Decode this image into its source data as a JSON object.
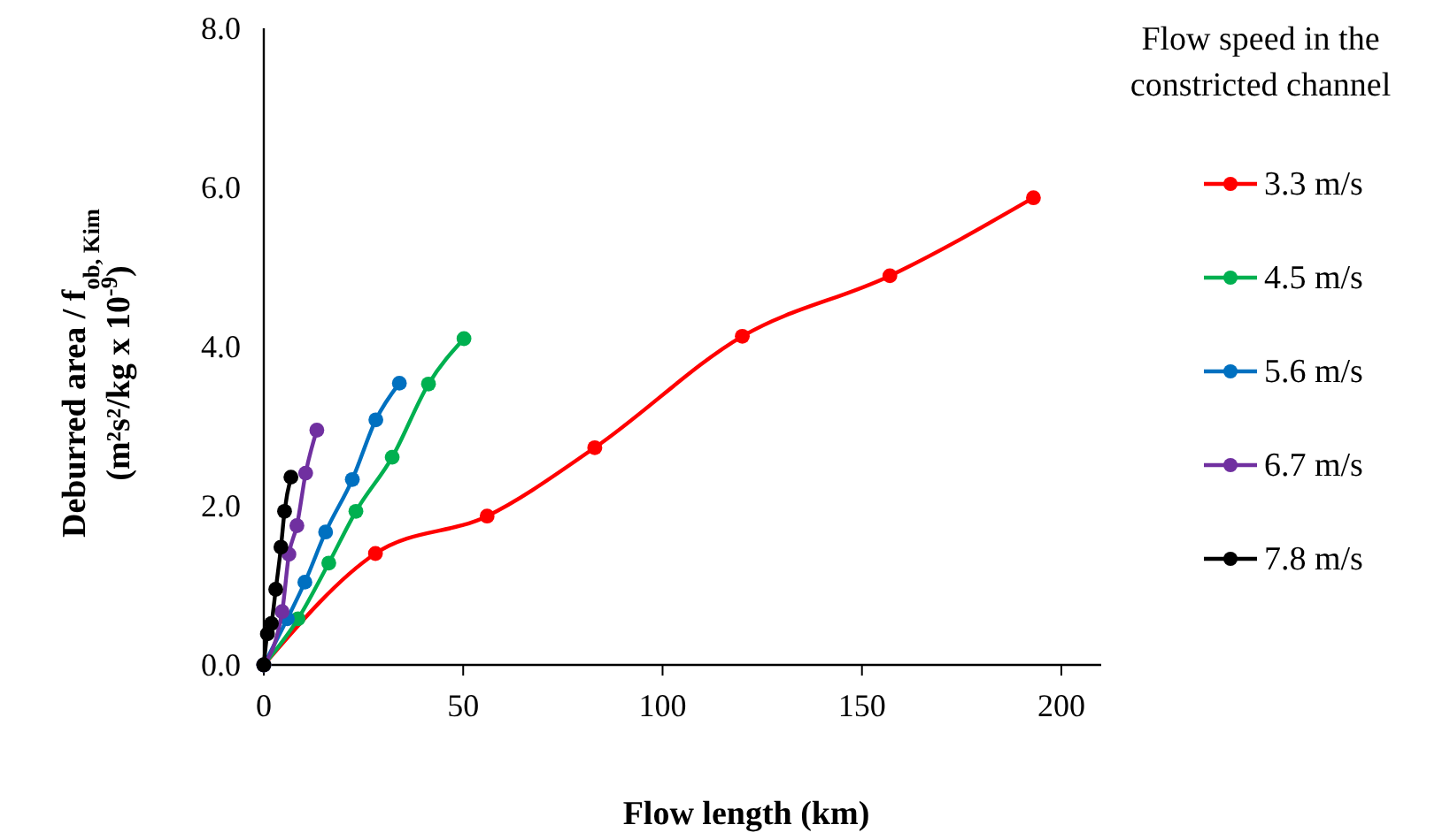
{
  "chart_data": {
    "type": "line",
    "xlabel": "Flow length (km)",
    "ylabel": "Deburred area / f$_{ob, Kim}$\n(m²s²/kg x 10$^{-9}$)",
    "legend_title": "Flow speed in the constricted channel",
    "legend": "right",
    "marker": "circle",
    "line_style": "solid",
    "grid": false,
    "xlim": [
      0,
      210
    ],
    "xticks": [
      0,
      50,
      100,
      150,
      200
    ],
    "ylim": [
      0,
      8
    ],
    "yticks": [
      {
        "value": 0,
        "label": "0.0"
      },
      {
        "value": 2,
        "label": "2.0"
      },
      {
        "value": 4,
        "label": "4.0"
      },
      {
        "value": 6,
        "label": "6.0"
      },
      {
        "value": 8,
        "label": "8.0"
      }
    ],
    "series": [
      {
        "name": "3.3 m/s",
        "color": "#ff0000",
        "x": [
          0,
          28,
          56,
          83,
          120,
          157,
          193
        ],
        "values": [
          0,
          1.4,
          1.87,
          2.73,
          4.13,
          4.89,
          5.87
        ]
      },
      {
        "name": "4.5 m/s",
        "color": "#00b050",
        "x": [
          0,
          8.6,
          16.3,
          23.1,
          32.2,
          41.3,
          50.2
        ],
        "values": [
          0,
          0.58,
          1.28,
          1.93,
          2.61,
          3.53,
          4.1
        ]
      },
      {
        "name": "5.6 m/s",
        "color": "#0070c0",
        "x": [
          0,
          5.9,
          10.3,
          15.5,
          22.2,
          28.1,
          34
        ],
        "values": [
          0,
          0.58,
          1.04,
          1.67,
          2.33,
          3.08,
          3.54
        ]
      },
      {
        "name": "6.7 m/s",
        "color": "#7030a0",
        "x": [
          0,
          4.6,
          6.3,
          8.3,
          10.5,
          13.3
        ],
        "values": [
          0,
          0.67,
          1.39,
          1.75,
          2.41,
          2.95
        ]
      },
      {
        "name": "7.8 m/s",
        "color": "#000000",
        "x": [
          0,
          0.9,
          1.9,
          3,
          4.3,
          5.2,
          6.8
        ],
        "values": [
          0,
          0.39,
          0.52,
          0.95,
          1.48,
          1.93,
          2.36
        ]
      }
    ]
  }
}
